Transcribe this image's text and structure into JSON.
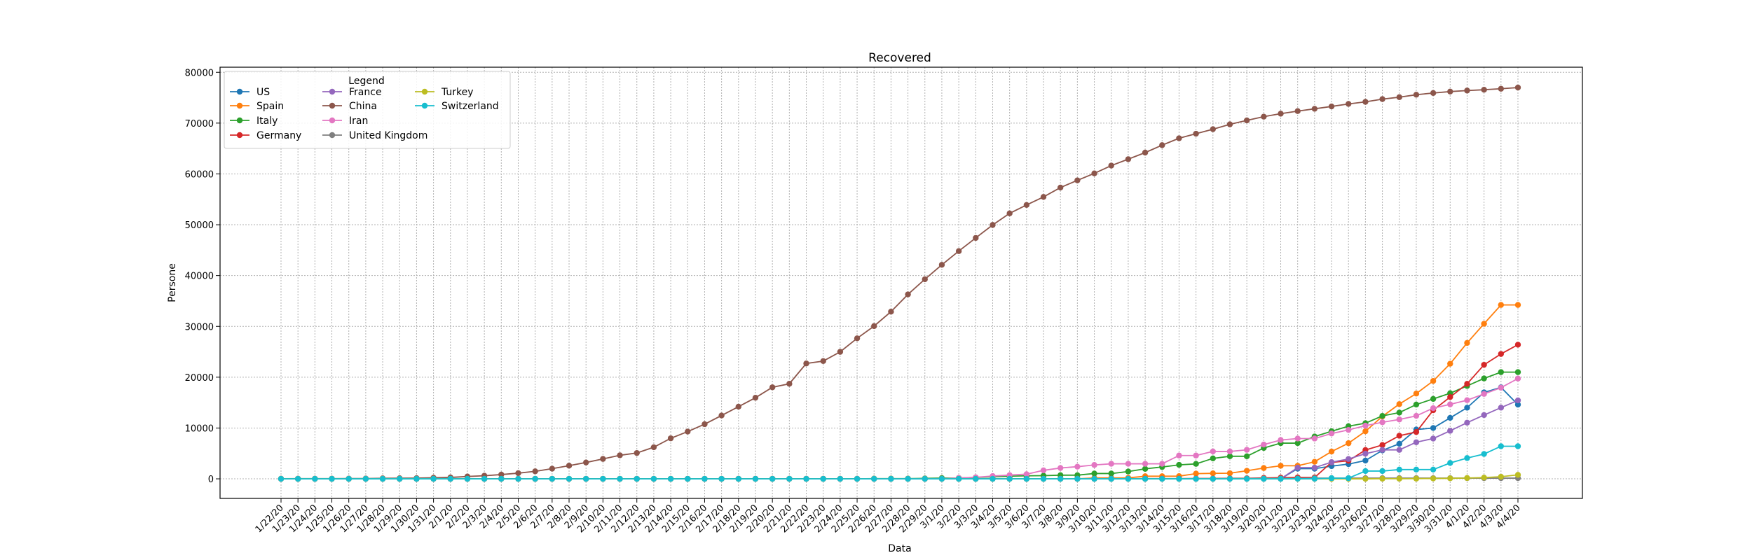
{
  "chart_data": {
    "type": "line",
    "title": "Recovered",
    "xlabel": "Data",
    "ylabel": "Persone",
    "ylim": [
      -3850,
      81000
    ],
    "yticks": [
      0,
      10000,
      20000,
      30000,
      40000,
      50000,
      60000,
      70000,
      80000
    ],
    "grid": true,
    "legend": {
      "title": "Legend",
      "placement": "top-left",
      "columns": 3
    },
    "x": [
      "1/22/20",
      "1/23/20",
      "1/24/20",
      "1/25/20",
      "1/26/20",
      "1/27/20",
      "1/28/20",
      "1/29/20",
      "1/30/20",
      "1/31/20",
      "2/1/20",
      "2/2/20",
      "2/3/20",
      "2/4/20",
      "2/5/20",
      "2/6/20",
      "2/7/20",
      "2/8/20",
      "2/9/20",
      "2/10/20",
      "2/11/20",
      "2/12/20",
      "2/13/20",
      "2/14/20",
      "2/15/20",
      "2/16/20",
      "2/17/20",
      "2/18/20",
      "2/19/20",
      "2/20/20",
      "2/21/20",
      "2/22/20",
      "2/23/20",
      "2/24/20",
      "2/25/20",
      "2/26/20",
      "2/27/20",
      "2/28/20",
      "2/29/20",
      "3/1/20",
      "3/2/20",
      "3/3/20",
      "3/4/20",
      "3/5/20",
      "3/6/20",
      "3/7/20",
      "3/8/20",
      "3/9/20",
      "3/10/20",
      "3/11/20",
      "3/12/20",
      "3/13/20",
      "3/14/20",
      "3/15/20",
      "3/16/20",
      "3/17/20",
      "3/18/20",
      "3/19/20",
      "3/20/20",
      "3/21/20",
      "3/22/20",
      "3/23/20",
      "3/24/20",
      "3/25/20",
      "3/26/20",
      "3/27/20",
      "3/28/20",
      "3/29/20",
      "3/30/20",
      "3/31/20",
      "4/1/20",
      "4/2/20",
      "4/3/20",
      "4/4/20"
    ],
    "series": [
      {
        "name": "US",
        "color": "#1f77b4",
        "values": [
          0,
          0,
          0,
          0,
          0,
          0,
          0,
          0,
          0,
          0,
          0,
          0,
          0,
          0,
          0,
          0,
          0,
          0,
          3,
          3,
          3,
          3,
          3,
          3,
          3,
          3,
          3,
          3,
          3,
          3,
          5,
          5,
          5,
          5,
          6,
          6,
          6,
          7,
          7,
          7,
          7,
          7,
          7,
          7,
          7,
          7,
          7,
          7,
          8,
          8,
          12,
          12,
          12,
          17,
          17,
          17,
          17,
          17,
          17,
          17,
          2000,
          2000,
          2500,
          2900,
          3600,
          5600,
          6900,
          9700,
          10000,
          12000,
          14000,
          17000,
          18000,
          14600
        ]
      },
      {
        "name": "Spain",
        "color": "#ff7f0e",
        "values": [
          0,
          0,
          0,
          0,
          0,
          0,
          0,
          0,
          0,
          0,
          0,
          0,
          0,
          0,
          0,
          0,
          0,
          0,
          0,
          2,
          2,
          2,
          2,
          2,
          2,
          2,
          2,
          2,
          2,
          2,
          2,
          2,
          2,
          2,
          2,
          2,
          2,
          2,
          2,
          2,
          2,
          2,
          2,
          2,
          2,
          2,
          2,
          2,
          183,
          183,
          193,
          517,
          517,
          530,
          1028,
          1081,
          1107,
          1588,
          2125,
          2575,
          2575,
          3355,
          5367,
          7015,
          9357,
          12285,
          14709,
          16780,
          19259,
          22647,
          26743,
          30513,
          34219,
          34219
        ]
      },
      {
        "name": "Italy",
        "color": "#2ca02c",
        "values": [
          0,
          0,
          0,
          0,
          0,
          0,
          0,
          0,
          0,
          0,
          0,
          0,
          0,
          0,
          0,
          0,
          0,
          0,
          0,
          0,
          0,
          0,
          0,
          0,
          0,
          0,
          0,
          0,
          0,
          0,
          0,
          1,
          2,
          1,
          3,
          45,
          46,
          46,
          83,
          149,
          160,
          276,
          414,
          523,
          589,
          622,
          724,
          724,
          1045,
          1045,
          1439,
          1966,
          2335,
          2749,
          2941,
          4025,
          4440,
          4440,
          6072,
          7024,
          7024,
          8326,
          9362,
          10361,
          10950,
          12384,
          13030,
          14620,
          15729,
          16847,
          18278,
          19758,
          20996,
          20996
        ]
      },
      {
        "name": "Germany",
        "color": "#d62728",
        "values": [
          0,
          0,
          0,
          0,
          0,
          0,
          0,
          0,
          0,
          0,
          0,
          0,
          0,
          0,
          0,
          0,
          0,
          0,
          0,
          0,
          0,
          0,
          0,
          0,
          0,
          1,
          1,
          12,
          12,
          12,
          14,
          14,
          14,
          14,
          14,
          16,
          16,
          16,
          16,
          16,
          16,
          16,
          16,
          16,
          16,
          18,
          18,
          18,
          18,
          25,
          25,
          46,
          46,
          46,
          67,
          67,
          105,
          113,
          180,
          233,
          266,
          266,
          3243,
          3547,
          5673,
          6658,
          8481,
          9211,
          13500,
          16100,
          18700,
          22440,
          24575,
          26400
        ]
      },
      {
        "name": "France",
        "color": "#9467bd",
        "values": [
          0,
          0,
          0,
          0,
          0,
          0,
          0,
          0,
          0,
          0,
          0,
          0,
          0,
          0,
          0,
          0,
          0,
          0,
          0,
          0,
          0,
          2,
          2,
          2,
          4,
          4,
          4,
          4,
          4,
          4,
          4,
          4,
          4,
          4,
          4,
          4,
          4,
          4,
          12,
          12,
          12,
          12,
          12,
          12,
          12,
          12,
          12,
          12,
          12,
          12,
          12,
          12,
          12,
          12,
          12,
          12,
          12,
          12,
          12,
          12,
          2200,
          2200,
          3281,
          3900,
          4948,
          5700,
          5700,
          7202,
          7927,
          9444,
          11053,
          12548,
          14008,
          15438
        ]
      },
      {
        "name": "China",
        "color": "#8c564b",
        "values": [
          28,
          30,
          36,
          39,
          49,
          58,
          101,
          120,
          135,
          214,
          275,
          463,
          614,
          843,
          1115,
          1476,
          1998,
          2595,
          3218,
          3917,
          4635,
          5082,
          6217,
          7977,
          9298,
          10755,
          12462,
          14206,
          15962,
          18014,
          18704,
          22699,
          23170,
          24990,
          27650,
          30053,
          32898,
          36291,
          39279,
          42118,
          44810,
          47404,
          49955,
          52240,
          53888,
          55478,
          57320,
          58735,
          60106,
          61644,
          62901,
          64196,
          65660,
          67017,
          67910,
          68798,
          69755,
          70535,
          71266,
          71857,
          72362,
          72814,
          73280,
          73773,
          74181,
          74720,
          75100,
          75582,
          75923,
          76206,
          76405,
          76565,
          76760,
          77000
        ]
      },
      {
        "name": "Iran",
        "color": "#e377c2",
        "values": [
          0,
          0,
          0,
          0,
          0,
          0,
          0,
          0,
          0,
          0,
          0,
          0,
          0,
          0,
          0,
          0,
          0,
          0,
          0,
          0,
          0,
          0,
          0,
          0,
          0,
          0,
          0,
          0,
          0,
          0,
          0,
          0,
          0,
          0,
          0,
          0,
          0,
          0,
          0,
          0,
          175,
          291,
          552,
          739,
          913,
          1669,
          2134,
          2394,
          2731,
          2959,
          2959,
          2959,
          2959,
          4590,
          4590,
          5389,
          5389,
          5710,
          6745,
          7635,
          7931,
          7931,
          8913,
          9625,
          10457,
          11133,
          11679,
          12391,
          13911,
          14656,
          15473,
          16711,
          17935,
          19736
        ]
      },
      {
        "name": "United Kingdom",
        "color": "#7f7f7f",
        "values": [
          0,
          0,
          0,
          0,
          0,
          0,
          0,
          0,
          0,
          0,
          0,
          0,
          0,
          0,
          0,
          0,
          0,
          0,
          0,
          0,
          0,
          0,
          0,
          0,
          0,
          0,
          0,
          0,
          0,
          0,
          0,
          0,
          0,
          0,
          0,
          0,
          0,
          0,
          0,
          0,
          0,
          0,
          0,
          0,
          0,
          0,
          0,
          0,
          0,
          0,
          0,
          0,
          0,
          0,
          0,
          0,
          65,
          65,
          67,
          67,
          67,
          135,
          135,
          135,
          135,
          135,
          135,
          135,
          135,
          135,
          135,
          135,
          135,
          135
        ]
      },
      {
        "name": "Turkey",
        "color": "#bcbd22",
        "values": [
          0,
          0,
          0,
          0,
          0,
          0,
          0,
          0,
          0,
          0,
          0,
          0,
          0,
          0,
          0,
          0,
          0,
          0,
          0,
          0,
          0,
          0,
          0,
          0,
          0,
          0,
          0,
          0,
          0,
          0,
          0,
          0,
          0,
          0,
          0,
          0,
          0,
          0,
          0,
          0,
          0,
          0,
          0,
          0,
          0,
          0,
          0,
          0,
          0,
          0,
          0,
          0,
          0,
          0,
          0,
          0,
          0,
          0,
          0,
          0,
          0,
          0,
          0,
          0,
          0,
          26,
          26,
          42,
          70,
          105,
          162,
          243,
          415,
          786
        ]
      },
      {
        "name": "Switzerland",
        "color": "#17becf",
        "values": [
          0,
          0,
          0,
          0,
          0,
          0,
          0,
          0,
          0,
          0,
          0,
          0,
          0,
          0,
          0,
          0,
          0,
          0,
          0,
          0,
          0,
          0,
          0,
          0,
          0,
          0,
          0,
          0,
          0,
          0,
          0,
          0,
          0,
          0,
          0,
          0,
          0,
          0,
          0,
          0,
          0,
          0,
          0,
          0,
          0,
          0,
          0,
          0,
          0,
          0,
          0,
          0,
          0,
          0,
          0,
          0,
          0,
          0,
          0,
          0,
          15,
          15,
          131,
          131,
          1530,
          1530,
          1823,
          1823,
          1823,
          3127,
          4090,
          4884,
          6415,
          6415
        ]
      }
    ]
  }
}
